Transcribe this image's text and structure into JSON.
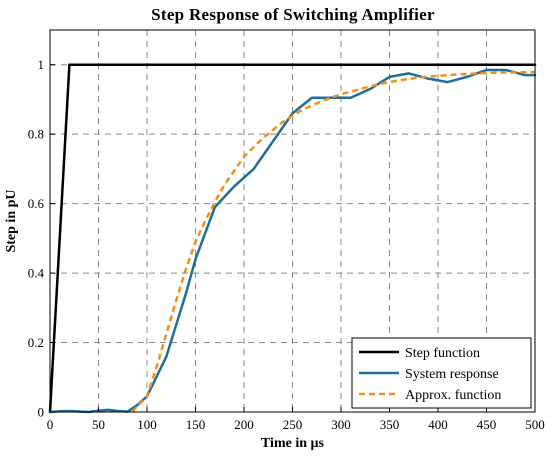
{
  "chart_data": {
    "type": "line",
    "title": "Step Response of Switching Amplifier",
    "xlabel": "Time in µs",
    "ylabel": "Step in pU",
    "xlim": [
      0,
      500
    ],
    "ylim": [
      0,
      1.1
    ],
    "xticks": [
      0,
      50,
      100,
      150,
      200,
      250,
      300,
      350,
      400,
      450,
      500
    ],
    "yticks": [
      0,
      0.2,
      0.4,
      0.6,
      0.8,
      1
    ],
    "ytick_labels": [
      "0",
      "0.2",
      "0.4",
      "0.6",
      "0.8",
      "1"
    ],
    "grid": true,
    "legend_position": "bottom-right",
    "series": [
      {
        "name": "Step function",
        "color": "#000000",
        "style": "solid",
        "x": [
          0,
          20,
          500
        ],
        "y": [
          0,
          1,
          1
        ]
      },
      {
        "name": "System response",
        "color": "#1f6d99",
        "style": "solid",
        "x": [
          0,
          10,
          20,
          40,
          50,
          60,
          70,
          80,
          90,
          100,
          120,
          140,
          150,
          170,
          190,
          210,
          230,
          250,
          270,
          290,
          310,
          330,
          350,
          370,
          390,
          410,
          430,
          450,
          470,
          490,
          500
        ],
        "y": [
          0,
          0.002,
          0.003,
          0.0,
          0.004,
          0.006,
          0.003,
          0.001,
          0.02,
          0.045,
          0.16,
          0.34,
          0.44,
          0.59,
          0.65,
          0.7,
          0.78,
          0.86,
          0.905,
          0.905,
          0.905,
          0.93,
          0.965,
          0.975,
          0.96,
          0.95,
          0.965,
          0.985,
          0.985,
          0.97,
          0.97
        ]
      },
      {
        "name": "Approx. function",
        "color": "#f28e1c",
        "style": "dashed",
        "x": [
          85,
          90,
          95,
          100,
          110,
          120,
          130,
          140,
          150,
          160,
          170,
          180,
          190,
          200,
          220,
          240,
          260,
          280,
          300,
          320,
          340,
          360,
          380,
          400,
          420,
          440,
          460,
          480,
          500
        ],
        "y": [
          0,
          0.018,
          0.03,
          0.046,
          0.13,
          0.226,
          0.32,
          0.41,
          0.49,
          0.55,
          0.605,
          0.655,
          0.695,
          0.735,
          0.79,
          0.835,
          0.87,
          0.895,
          0.915,
          0.93,
          0.945,
          0.955,
          0.963,
          0.968,
          0.972,
          0.975,
          0.977,
          0.978,
          0.979
        ]
      }
    ]
  }
}
